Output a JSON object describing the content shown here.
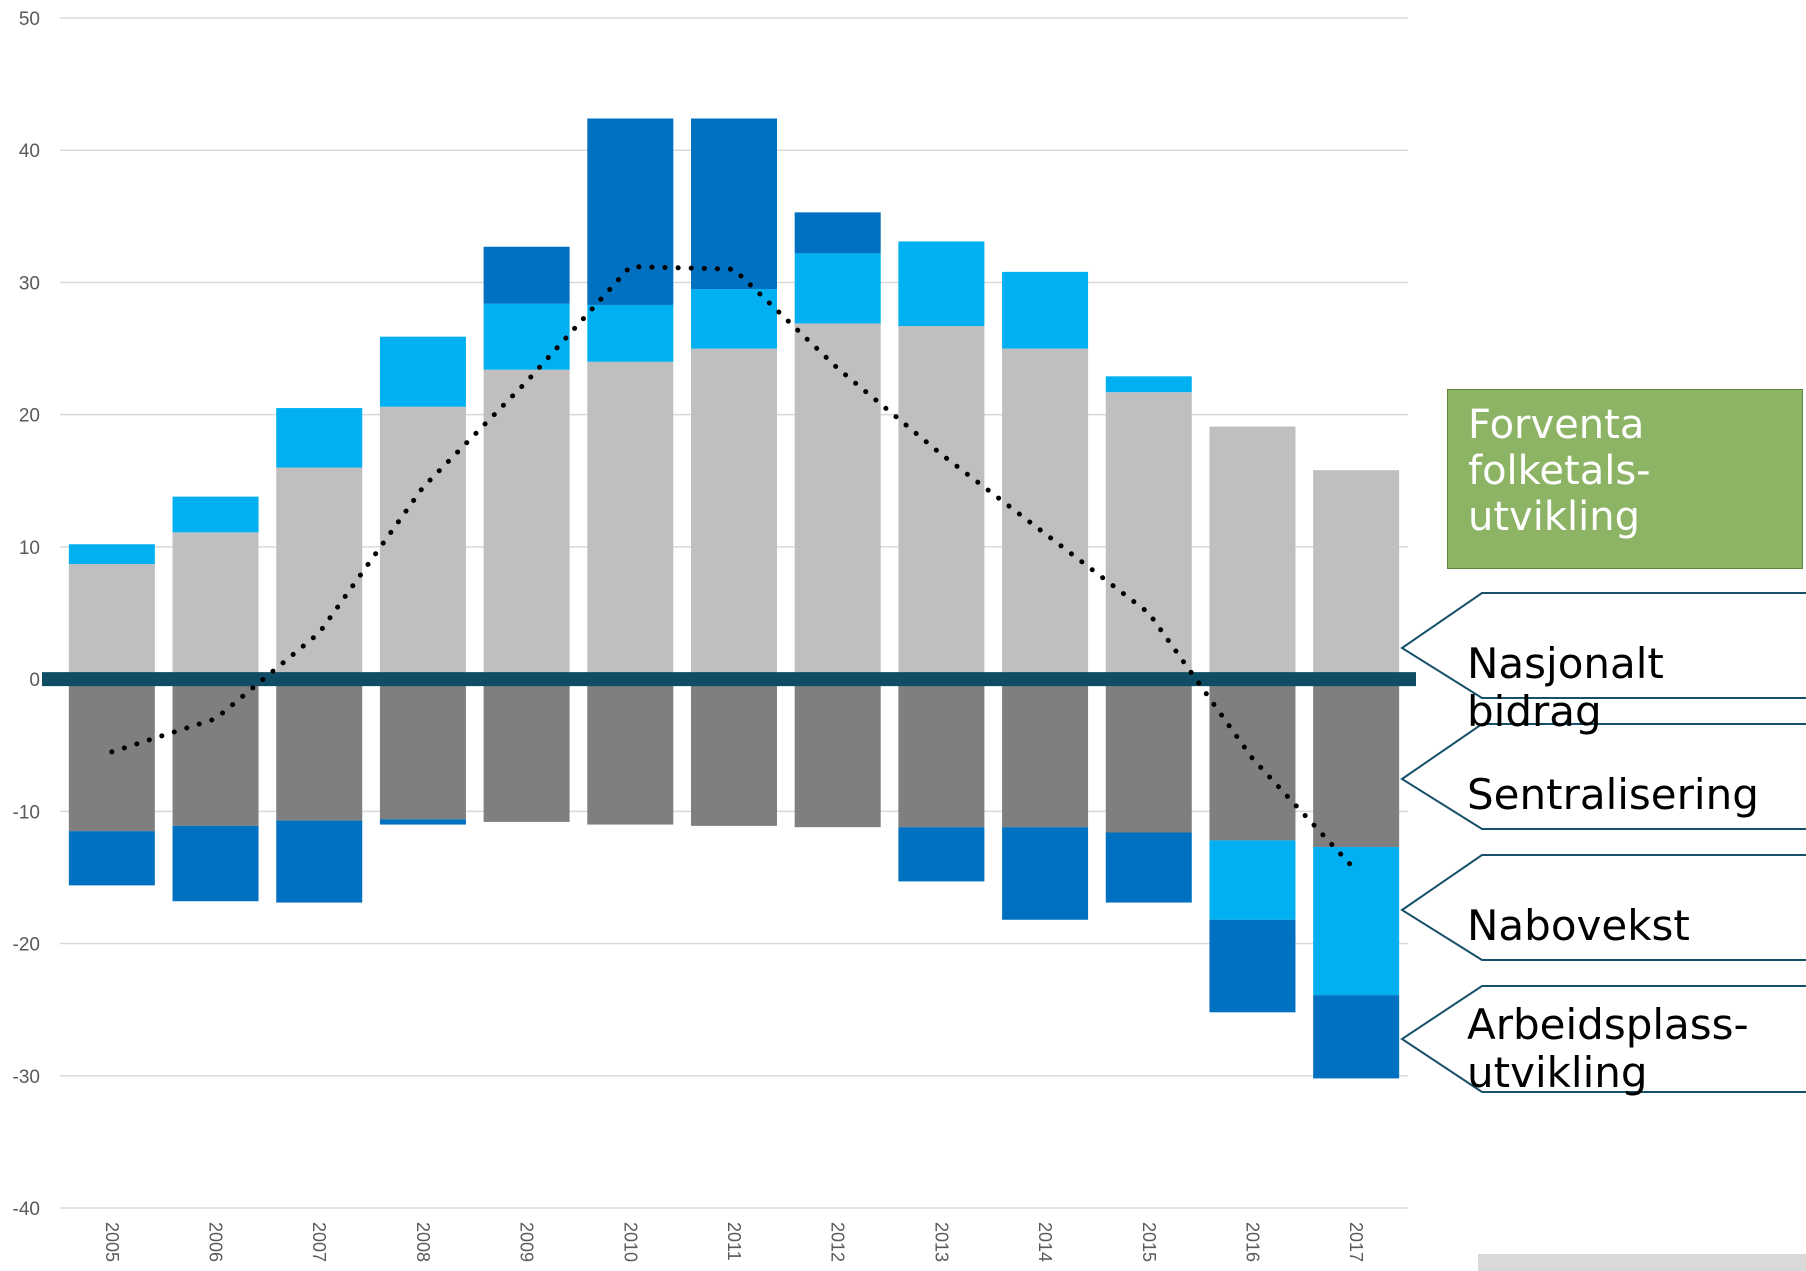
{
  "chart_data": {
    "type": "bar",
    "stacked": true,
    "categories": [
      "2005",
      "2006",
      "2007",
      "2008",
      "2009",
      "2010",
      "2011",
      "2012",
      "2013",
      "2014",
      "2015",
      "2016",
      "2017"
    ],
    "ylim": [
      -40,
      50
    ],
    "yticks": [
      50,
      40,
      30,
      20,
      10,
      0,
      -10,
      -20,
      -30,
      -40
    ],
    "grid": true,
    "series": [
      {
        "name": "Nasjonalt bidrag",
        "color": "#bfbfbf",
        "values": [
          8.7,
          11.1,
          16.0,
          20.6,
          23.4,
          24.0,
          25.0,
          26.9,
          26.7,
          25.0,
          21.7,
          19.1,
          15.8
        ]
      },
      {
        "name": "Sentralisering",
        "color": "#7f7f7f",
        "values": [
          -11.5,
          -11.1,
          -10.7,
          -10.6,
          -10.8,
          -11.0,
          -11.1,
          -11.2,
          -11.2,
          -11.2,
          -11.6,
          -12.2,
          -12.7
        ]
      },
      {
        "name": "Nabovekst",
        "color": "#00b0f0",
        "values": [
          1.5,
          2.7,
          4.5,
          5.3,
          5.0,
          4.3,
          4.5,
          5.3,
          6.4,
          5.8,
          1.2,
          -6.0,
          -11.2
        ]
      },
      {
        "name": "Arbeidsplass-utvikling",
        "color": "#0070c0",
        "values": [
          -4.1,
          -5.7,
          -6.2,
          -0.4,
          4.3,
          14.1,
          12.9,
          3.1,
          -4.1,
          -7.0,
          -5.3,
          -7.0,
          -6.3
        ]
      }
    ],
    "trend": {
      "name": "Forventa folketals-utvikling",
      "style": "dotted",
      "values": [
        -5.5,
        -3.0,
        3.5,
        14.5,
        22.5,
        31.2,
        31.0,
        23.5,
        17.0,
        11.0,
        5.0,
        -6.0,
        -14.5
      ]
    },
    "zero_line_color": "#0e4d63"
  },
  "legend": {
    "trend_label": "Forventa folketals-utvikling",
    "trend_lines": [
      "Forventa",
      "folketals-",
      "utvikling"
    ],
    "nasjonalt": "Nasjonalt bidrag",
    "sentralisering": "Sentralisering",
    "nabovekst": "Nabovekst",
    "arbeid_lines": [
      "Arbeidsplass-",
      "utvikling"
    ],
    "callout_color": "#17506b",
    "box_color": "#8db365"
  }
}
